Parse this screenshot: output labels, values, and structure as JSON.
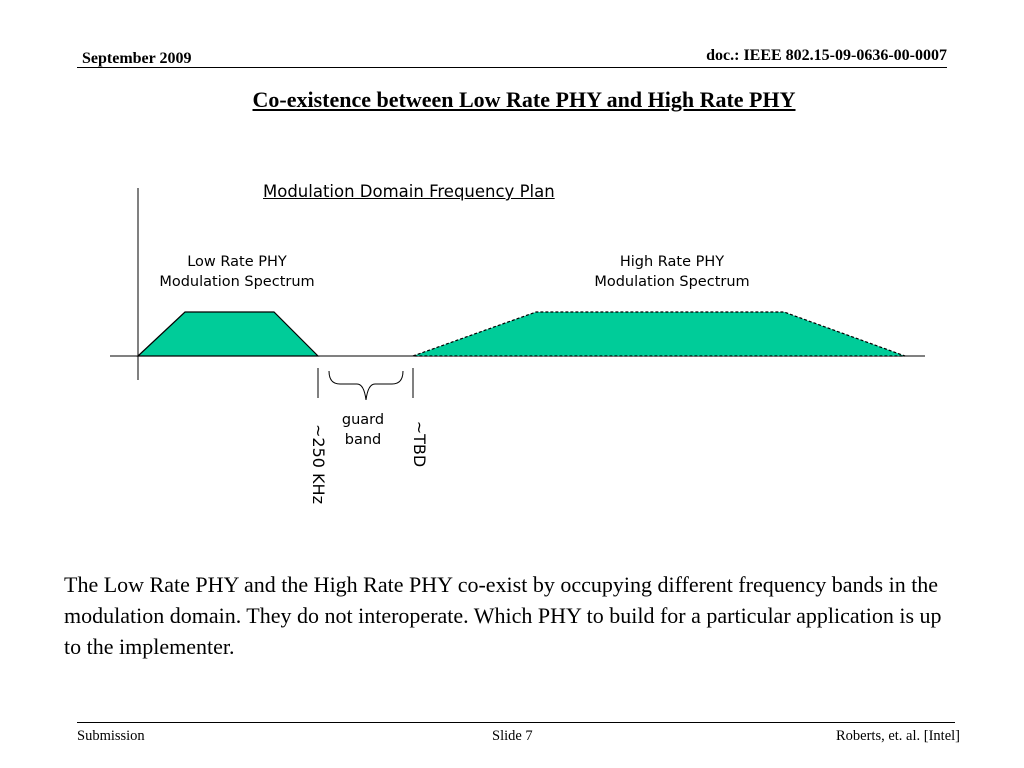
{
  "header": {
    "date": "September 2009",
    "doc_id": "doc.: IEEE 802.15-09-0636-00-0007"
  },
  "slide_title": "Co-existence between Low Rate PHY and High Rate PHY",
  "diagram": {
    "title": "Modulation Domain Frequency Plan",
    "low_rate": {
      "line1": "Low Rate PHY",
      "line2": "Modulation Spectrum"
    },
    "high_rate": {
      "line1": "High Rate PHY",
      "line2": "Modulation Spectrum"
    },
    "guard_band": {
      "line1": "guard",
      "line2": "band"
    },
    "low_offset_label": "~250 KHz",
    "guard_width_label": "~TBD",
    "fill_color": "#00cc99",
    "stroke_color": "#000000"
  },
  "body_text": "The Low Rate PHY and the High Rate PHY co-exist by occupying different frequency bands in the modulation domain.  They do not interoperate.  Which PHY to build for a particular application is up to the implementer.",
  "footer": {
    "left": "Submission",
    "center": "Slide 7",
    "right": "Roberts, et. al. [Intel]"
  }
}
